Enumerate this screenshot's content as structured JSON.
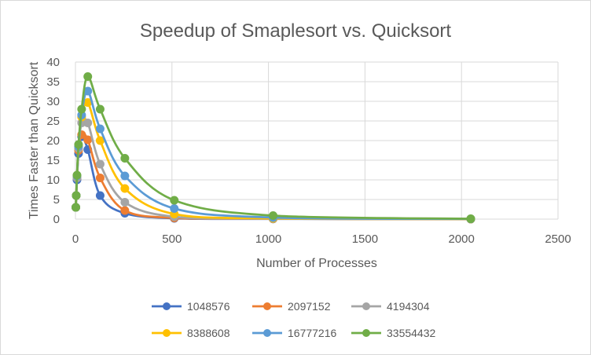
{
  "chart_data": {
    "type": "scatter",
    "title": "Speedup of Smaplesort vs. Quicksort",
    "xlabel": "Number of Processes",
    "ylabel": "Times Faster than Quicksort",
    "xlim": [
      0,
      2500
    ],
    "ylim": [
      0,
      40
    ],
    "x_ticks": [
      0,
      500,
      1000,
      1500,
      2000,
      2500
    ],
    "y_ticks": [
      0,
      5,
      10,
      15,
      20,
      25,
      30,
      35,
      40
    ],
    "grid": true,
    "legend_position": "bottom",
    "smooth_lines": true,
    "series": [
      {
        "name": "1048576",
        "color": "#4472c4",
        "x": [
          2,
          4,
          8,
          16,
          32,
          64,
          128,
          256,
          512,
          1024,
          2048
        ],
        "y": [
          3,
          6,
          10,
          16.7,
          21,
          17.7,
          6,
          1.5,
          0.2,
          0.05,
          0.01
        ]
      },
      {
        "name": "2097152",
        "color": "#ed7d31",
        "x": [
          2,
          4,
          8,
          16,
          32,
          64,
          128,
          256,
          512,
          1024,
          2048
        ],
        "y": [
          3,
          6,
          10.5,
          17.5,
          21.5,
          20.2,
          10.5,
          2.2,
          0.3,
          0.08,
          0.01
        ]
      },
      {
        "name": "4194304",
        "color": "#a5a5a5",
        "x": [
          2,
          4,
          8,
          16,
          32,
          64,
          128,
          256,
          512,
          1024,
          2048
        ],
        "y": [
          3,
          6,
          10.5,
          18,
          24.5,
          24.5,
          14,
          4.3,
          0.6,
          0.1,
          0.02
        ]
      },
      {
        "name": "8388608",
        "color": "#ffc000",
        "x": [
          2,
          4,
          8,
          16,
          32,
          64,
          128,
          256,
          512,
          1024,
          2048
        ],
        "y": [
          3,
          6,
          11,
          18.5,
          26,
          29.7,
          20,
          7.8,
          1.3,
          0.2,
          0.03
        ]
      },
      {
        "name": "16777216",
        "color": "#5b9bd5",
        "x": [
          2,
          4,
          8,
          16,
          32,
          64,
          128,
          256,
          512,
          1024,
          2048
        ],
        "y": [
          3,
          6,
          11,
          18.5,
          26.5,
          32.6,
          23,
          11,
          2.7,
          0.4,
          0.05
        ]
      },
      {
        "name": "33554432",
        "color": "#70ad47",
        "x": [
          2,
          4,
          8,
          16,
          32,
          64,
          128,
          256,
          512,
          1024,
          2048
        ],
        "y": [
          3,
          6,
          11.2,
          19,
          28,
          36.3,
          28,
          15.5,
          4.8,
          0.9,
          0.1
        ]
      }
    ]
  }
}
